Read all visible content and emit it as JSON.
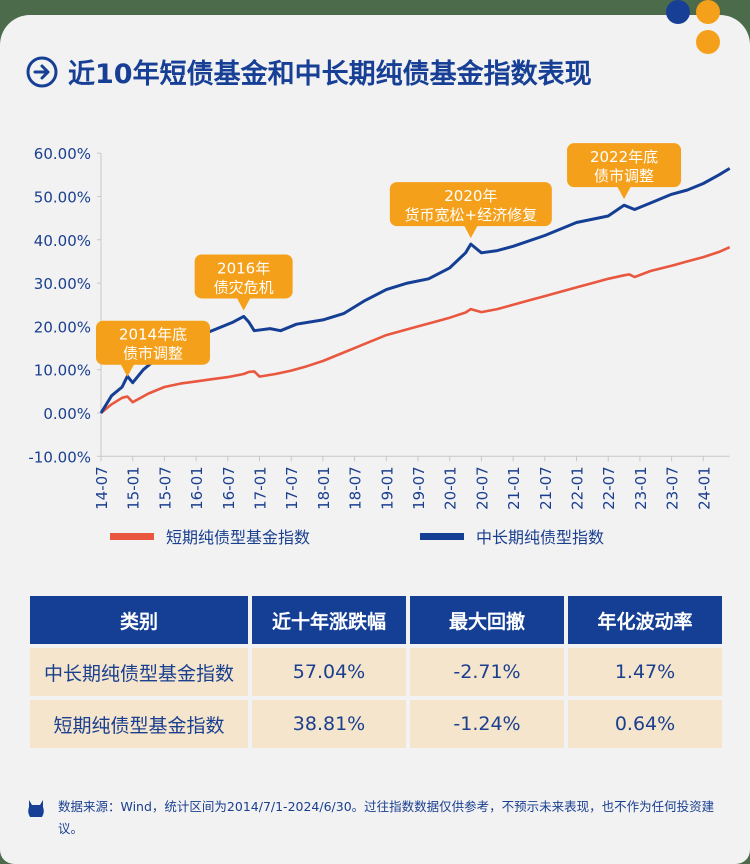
{
  "title": "近10年短债基金和中长期纯债基金指数表现",
  "colors": {
    "navy": "#163f95",
    "orange": "#f5a01a",
    "red": "#e9573f",
    "blue": "#143f95",
    "cell": "#f4e5cc"
  },
  "icons": {
    "title": "arrow-right-circle-icon",
    "footnote": "ox-mascot-icon"
  },
  "chart_data": {
    "type": "line",
    "ylim": [
      -10,
      60
    ],
    "yticks": [
      "60.00%",
      "50.00%",
      "40.00%",
      "30.00%",
      "20.00%",
      "10.00%",
      "0.00%",
      "-10.00%"
    ],
    "ytick_values": [
      60,
      50,
      40,
      30,
      20,
      10,
      0,
      -10
    ],
    "xticks": [
      "14-07",
      "15-01",
      "15-07",
      "16-01",
      "16-07",
      "17-01",
      "17-07",
      "18-01",
      "18-07",
      "19-01",
      "19-07",
      "20-01",
      "20-07",
      "21-01",
      "21-07",
      "22-01",
      "22-07",
      "23-01",
      "23-07",
      "24-01"
    ],
    "xlim": [
      "2014-07",
      "2024-06"
    ],
    "grid": false,
    "legend_placement": "bottom",
    "series": [
      {
        "name": "短期纯债型基金指数",
        "color": "#e9573f",
        "x": [
          "2014-07",
          "2014-09",
          "2014-11",
          "2014-12",
          "2015-01",
          "2015-04",
          "2015-07",
          "2015-10",
          "2016-01",
          "2016-04",
          "2016-07",
          "2016-10",
          "2016-11",
          "2016-12",
          "2017-01",
          "2017-04",
          "2017-07",
          "2017-10",
          "2018-01",
          "2018-04",
          "2018-07",
          "2018-10",
          "2019-01",
          "2019-04",
          "2019-07",
          "2019-10",
          "2020-01",
          "2020-04",
          "2020-05",
          "2020-07",
          "2020-10",
          "2021-01",
          "2021-04",
          "2021-07",
          "2021-10",
          "2022-01",
          "2022-04",
          "2022-07",
          "2022-10",
          "2022-11",
          "2022-12",
          "2023-03",
          "2023-07",
          "2023-10",
          "2024-01",
          "2024-04",
          "2024-06"
        ],
        "values": [
          0,
          2,
          3.5,
          3.8,
          2.5,
          4.5,
          6,
          6.8,
          7.3,
          7.8,
          8.3,
          9,
          9.5,
          9.6,
          8.4,
          9,
          9.8,
          10.8,
          12,
          13.5,
          15,
          16.5,
          18,
          19,
          20,
          21,
          22,
          23.2,
          24,
          23.3,
          24,
          25,
          26,
          27,
          28,
          29,
          30,
          31,
          31.8,
          32,
          31.4,
          32.8,
          34,
          35,
          36,
          37.2,
          38.3
        ]
      },
      {
        "name": "中长期纯债型指数",
        "color": "#143f95",
        "x": [
          "2014-07",
          "2014-09",
          "2014-11",
          "2014-12",
          "2015-01",
          "2015-03",
          "2015-05",
          "2015-07",
          "2015-09",
          "2015-11",
          "2016-01",
          "2016-04",
          "2016-08",
          "2016-10",
          "2016-11",
          "2016-12",
          "2017-03",
          "2017-05",
          "2017-08",
          "2018-01",
          "2018-05",
          "2018-09",
          "2019-01",
          "2019-05",
          "2019-09",
          "2020-01",
          "2020-04",
          "2020-05",
          "2020-07",
          "2020-10",
          "2021-01",
          "2021-07",
          "2022-01",
          "2022-07",
          "2022-10",
          "2022-12",
          "2023-03",
          "2023-07",
          "2023-10",
          "2024-01",
          "2024-04",
          "2024-06"
        ],
        "values": [
          0,
          4,
          6,
          8.5,
          7,
          10,
          12,
          16,
          17,
          18,
          17.5,
          19,
          21,
          22.3,
          21,
          19,
          19.5,
          19,
          20.5,
          21.5,
          23,
          26,
          28.5,
          30,
          31,
          33.5,
          37,
          39,
          37,
          37.5,
          38.5,
          41,
          44,
          45.5,
          48,
          47,
          48.5,
          50.5,
          51.5,
          53,
          55,
          56.5
        ]
      }
    ],
    "annotations": [
      {
        "lines": [
          "2014年底",
          "债市调整"
        ],
        "date": "2014-12",
        "value": 7
      },
      {
        "lines": [
          "2016年",
          "债灾危机"
        ],
        "date": "2016-10",
        "value": 22.3
      },
      {
        "lines": [
          "2020年",
          "货币宽松+经济修复"
        ],
        "date": "2020-05",
        "value": 39
      },
      {
        "lines": [
          "2022年底",
          "债市调整"
        ],
        "date": "2022-10",
        "value": 48
      }
    ]
  },
  "legend": [
    "短期纯债型基金指数",
    "中长期纯债型指数"
  ],
  "table": {
    "headers": [
      "类别",
      "近十年涨跌幅",
      "最大回撤",
      "年化波动率"
    ],
    "rows": [
      [
        "中长期纯债型基金指数",
        "57.04%",
        "-2.71%",
        "1.47%"
      ],
      [
        "短期纯债型基金指数",
        "38.81%",
        "-1.24%",
        "0.64%"
      ]
    ]
  },
  "footnote": "数据来源：Wind，统计区间为2014/7/1-2024/6/30。过往指数数据仅供参考，不预示未来表现，也不作为任何投资建议。"
}
